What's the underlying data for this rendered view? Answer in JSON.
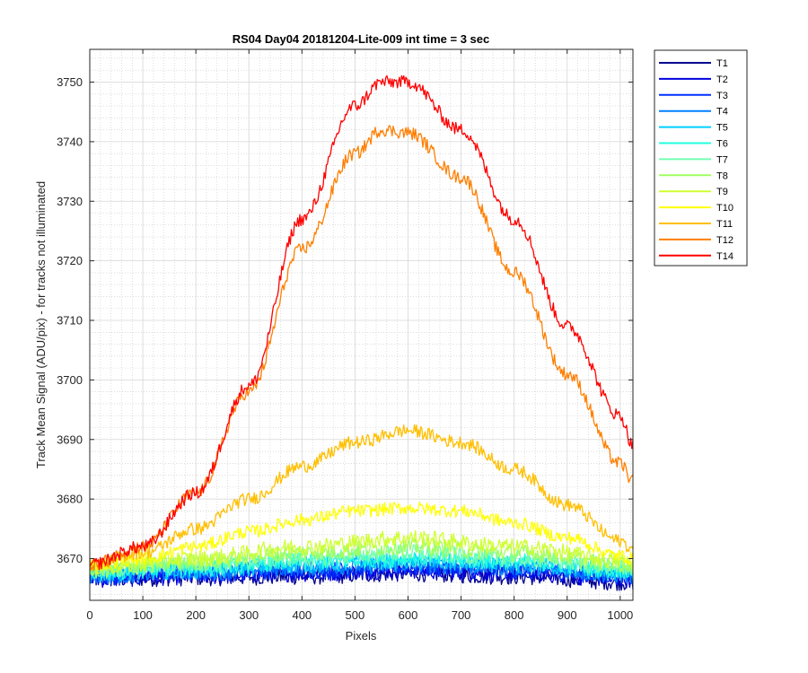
{
  "chart_data": {
    "type": "line",
    "title": "RS04 Day04 20181204-Lite-009 int time = 3 sec",
    "xlabel": "Pixels",
    "ylabel": "Track Mean Signal (ADU/pix) - for tracks not illuminated",
    "xlim": [
      0,
      1024
    ],
    "ylim": [
      3663,
      3755.5
    ],
    "xticks": [
      0,
      100,
      200,
      300,
      400,
      500,
      600,
      700,
      800,
      900,
      1000
    ],
    "yticks": [
      3670,
      3680,
      3690,
      3700,
      3710,
      3720,
      3730,
      3740,
      3750
    ],
    "grid": "major and minor, dotted",
    "legend_position": "outside top-right",
    "series": [
      {
        "name": "T1",
        "color": "#00008f",
        "points": [
          [
            0,
            3666.5
          ],
          [
            200,
            3666.8
          ],
          [
            400,
            3667
          ],
          [
            600,
            3667.5
          ],
          [
            800,
            3667
          ],
          [
            1024,
            3666
          ]
        ]
      },
      {
        "name": "T2",
        "color": "#0000df",
        "points": [
          [
            0,
            3666.5
          ],
          [
            200,
            3667
          ],
          [
            400,
            3667.5
          ],
          [
            600,
            3668
          ],
          [
            800,
            3667.5
          ],
          [
            1024,
            3666.5
          ]
        ]
      },
      {
        "name": "T3",
        "color": "#0030ff",
        "points": [
          [
            0,
            3667
          ],
          [
            200,
            3667.5
          ],
          [
            400,
            3668
          ],
          [
            600,
            3668.5
          ],
          [
            800,
            3668
          ],
          [
            1024,
            3667
          ]
        ]
      },
      {
        "name": "T4",
        "color": "#0080ff",
        "points": [
          [
            0,
            3667
          ],
          [
            200,
            3667.8
          ],
          [
            400,
            3668.5
          ],
          [
            600,
            3669
          ],
          [
            800,
            3668.5
          ],
          [
            1024,
            3667.2
          ]
        ]
      },
      {
        "name": "T5",
        "color": "#00cfff",
        "points": [
          [
            0,
            3667.5
          ],
          [
            200,
            3668
          ],
          [
            400,
            3669
          ],
          [
            600,
            3669.5
          ],
          [
            800,
            3669
          ],
          [
            1024,
            3667.5
          ]
        ]
      },
      {
        "name": "T6",
        "color": "#20ffdf",
        "points": [
          [
            0,
            3667.5
          ],
          [
            200,
            3668.5
          ],
          [
            400,
            3669.5
          ],
          [
            600,
            3670
          ],
          [
            800,
            3669.5
          ],
          [
            1024,
            3668
          ]
        ]
      },
      {
        "name": "T7",
        "color": "#70ffb0",
        "points": [
          [
            0,
            3668
          ],
          [
            200,
            3669
          ],
          [
            400,
            3670
          ],
          [
            600,
            3671
          ],
          [
            800,
            3670
          ],
          [
            1024,
            3668.5
          ]
        ]
      },
      {
        "name": "T8",
        "color": "#9fff60",
        "points": [
          [
            0,
            3668
          ],
          [
            200,
            3669.5
          ],
          [
            400,
            3671
          ],
          [
            600,
            3672
          ],
          [
            800,
            3671
          ],
          [
            1024,
            3669
          ]
        ]
      },
      {
        "name": "T9",
        "color": "#cfff30",
        "points": [
          [
            0,
            3668.5
          ],
          [
            200,
            3670
          ],
          [
            400,
            3672
          ],
          [
            600,
            3673.5
          ],
          [
            800,
            3672
          ],
          [
            1024,
            3669.5
          ]
        ]
      },
      {
        "name": "T10",
        "color": "#ffff00",
        "points": [
          [
            0,
            3669
          ],
          [
            100,
            3670
          ],
          [
            200,
            3672
          ],
          [
            300,
            3674.5
          ],
          [
            400,
            3676.5
          ],
          [
            500,
            3678
          ],
          [
            600,
            3678.5
          ],
          [
            700,
            3678
          ],
          [
            800,
            3676
          ],
          [
            900,
            3673.5
          ],
          [
            1000,
            3670.5
          ],
          [
            1024,
            3670
          ]
        ]
      },
      {
        "name": "T11",
        "color": "#ffbf00",
        "points": [
          [
            0,
            3669
          ],
          [
            100,
            3671
          ],
          [
            200,
            3675
          ],
          [
            300,
            3680
          ],
          [
            400,
            3685.5
          ],
          [
            500,
            3689.5
          ],
          [
            600,
            3691.5
          ],
          [
            700,
            3689.5
          ],
          [
            800,
            3685
          ],
          [
            900,
            3679
          ],
          [
            1000,
            3673
          ],
          [
            1024,
            3671.5
          ]
        ]
      },
      {
        "name": "T12",
        "color": "#ff7f00",
        "points": [
          [
            0,
            3669
          ],
          [
            100,
            3672
          ],
          [
            200,
            3681
          ],
          [
            300,
            3698
          ],
          [
            400,
            3722
          ],
          [
            500,
            3738
          ],
          [
            550,
            3742
          ],
          [
            600,
            3741.5
          ],
          [
            700,
            3734
          ],
          [
            800,
            3718
          ],
          [
            900,
            3701
          ],
          [
            1000,
            3686
          ],
          [
            1024,
            3683
          ]
        ]
      },
      {
        "name": "T14",
        "color": "#ff0000",
        "points": [
          [
            0,
            3669
          ],
          [
            100,
            3672
          ],
          [
            200,
            3681
          ],
          [
            300,
            3699
          ],
          [
            400,
            3727
          ],
          [
            500,
            3746
          ],
          [
            550,
            3750
          ],
          [
            600,
            3750
          ],
          [
            700,
            3742
          ],
          [
            800,
            3727
          ],
          [
            900,
            3709
          ],
          [
            1000,
            3694
          ],
          [
            1024,
            3689
          ]
        ]
      }
    ]
  }
}
